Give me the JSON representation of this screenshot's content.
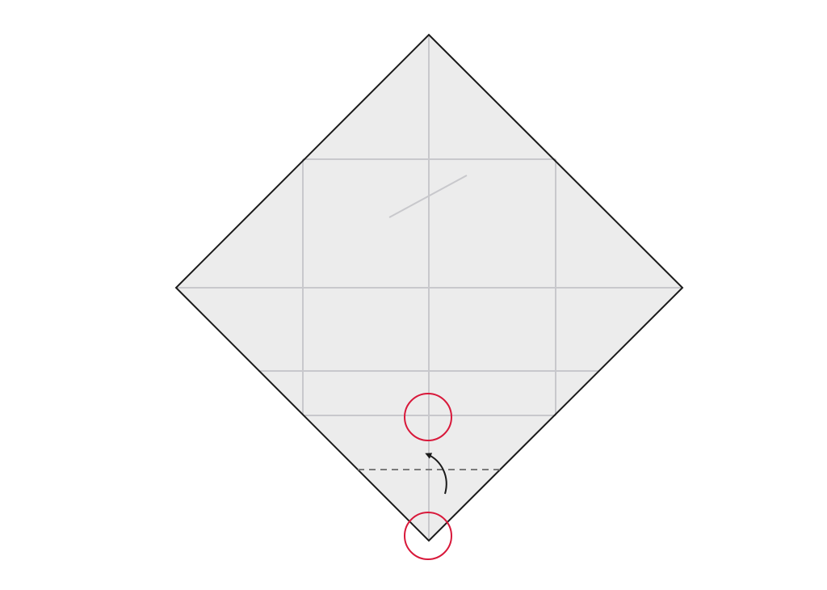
{
  "diagram": {
    "type": "origami-fold-step",
    "paper_color": "#ececec",
    "edge_color": "#1a1a1a",
    "crease_color": "#c8c8cc",
    "fold_line_color": "#7a7a7a",
    "arrow_color": "#1a1a1a",
    "marker_color": "#d8183a",
    "fold_style": "valley-fold-dashed",
    "arrow_direction": "up",
    "marker_count": 2
  }
}
